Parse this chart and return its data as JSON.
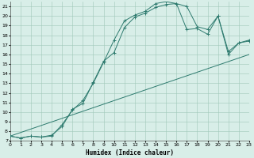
{
  "xlabel": "Humidex (Indice chaleur)",
  "bg_color": "#d8eee8",
  "grid_color": "#a0c8b8",
  "line_color": "#2d7a6e",
  "xlim": [
    0,
    23
  ],
  "ylim": [
    7,
    21.5
  ],
  "xticks": [
    0,
    1,
    2,
    3,
    4,
    5,
    6,
    7,
    8,
    9,
    10,
    11,
    12,
    13,
    14,
    15,
    16,
    17,
    18,
    19,
    20,
    21,
    22,
    23
  ],
  "yticks": [
    7,
    8,
    9,
    10,
    11,
    12,
    13,
    14,
    15,
    16,
    17,
    18,
    19,
    20,
    21
  ],
  "line1_x": [
    0,
    1,
    2,
    3,
    4,
    5,
    6,
    7,
    8,
    9,
    10,
    11,
    12,
    13,
    14,
    15,
    16,
    17,
    18,
    19,
    20,
    21,
    22,
    23
  ],
  "line1_y": [
    7.5,
    7.3,
    7.5,
    7.4,
    7.5,
    8.7,
    10.2,
    11.2,
    13.0,
    15.2,
    17.5,
    19.5,
    20.1,
    20.5,
    21.3,
    21.5,
    21.3,
    21.0,
    18.9,
    18.6,
    20.0,
    16.3,
    17.2,
    17.4
  ],
  "line2_x": [
    0,
    1,
    2,
    3,
    4,
    5,
    6,
    7,
    8,
    9,
    10,
    11,
    12,
    13,
    14,
    15,
    16,
    17,
    18,
    19,
    20,
    21,
    22,
    23
  ],
  "line2_y": [
    7.5,
    7.3,
    7.5,
    7.4,
    7.6,
    8.5,
    10.3,
    10.9,
    13.1,
    15.3,
    16.2,
    18.8,
    19.9,
    20.3,
    20.9,
    21.2,
    21.3,
    18.6,
    18.7,
    18.1,
    20.0,
    16.0,
    17.2,
    17.5
  ],
  "line3_x": [
    0,
    23
  ],
  "line3_y": [
    7.5,
    16.0
  ],
  "marker_style": "+"
}
